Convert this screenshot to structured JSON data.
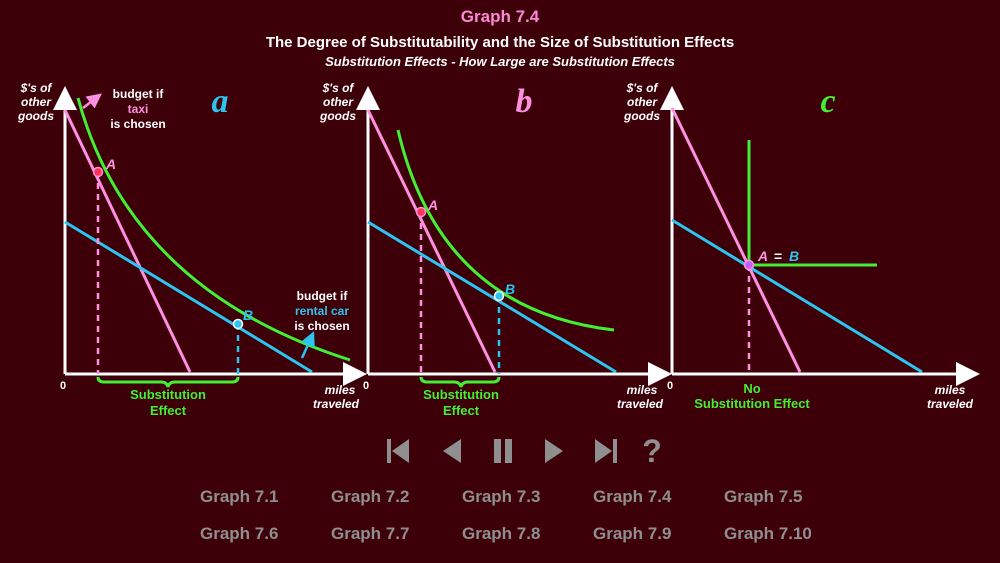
{
  "header": {
    "title": "Graph 7.4",
    "subtitle": "The Degree of Substitutability and the Size of Substitution Effects",
    "subsubtitle": "Substitution Effects - How Large are Substitution Effects"
  },
  "panels": {
    "a": {
      "letter": "a",
      "ylabel": [
        "$'s of",
        "other",
        "goods"
      ],
      "xlabel": [
        "miles",
        "traveled"
      ],
      "origin": "0",
      "point_a": "A",
      "point_b": "B",
      "budget_taxi": [
        "budget if",
        "taxi",
        "is chosen"
      ],
      "budget_rental": [
        "budget if",
        "rental car",
        "is chosen"
      ],
      "effect": [
        "Substitution",
        "Effect"
      ]
    },
    "b": {
      "letter": "b",
      "ylabel": [
        "$'s of",
        "other",
        "goods"
      ],
      "xlabel": [
        "miles",
        "traveled"
      ],
      "origin": "0",
      "point_a": "A",
      "point_b": "B",
      "effect": [
        "Substitution",
        "Effect"
      ]
    },
    "c": {
      "letter": "c",
      "ylabel": [
        "$'s of",
        "other",
        "goods"
      ],
      "xlabel": [
        "miles",
        "traveled"
      ],
      "origin": "0",
      "point_ab": [
        "A",
        "=",
        "B"
      ],
      "effect": [
        "No",
        "Substitution Effect"
      ]
    }
  },
  "colors": {
    "background": "#3d0008",
    "taxi_budget": "#ff8fe0",
    "rental_budget": "#2ec4f0",
    "indifference": "#44ee33",
    "axis": "#ffffff",
    "letter_a": "#2ec4f0",
    "letter_b": "#ff8fe0",
    "letter_c": "#44ee33",
    "controls": "#8f8f8f"
  },
  "controls": {
    "first_icon": "skip-to-first-icon",
    "prev_icon": "previous-icon",
    "pause_icon": "pause-icon",
    "next_icon": "next-icon",
    "last_icon": "skip-to-last-icon",
    "help_label": "?"
  },
  "nav": [
    "Graph 7.1",
    "Graph 7.2",
    "Graph 7.3",
    "Graph 7.4",
    "Graph 7.5",
    "Graph 7.6",
    "Graph 7.7",
    "Graph 7.8",
    "Graph 7.9",
    "Graph 7.10"
  ]
}
